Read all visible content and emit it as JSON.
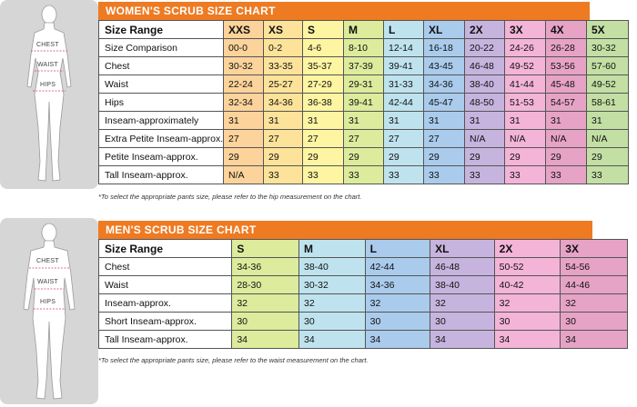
{
  "women": {
    "title": "WOMEN'S SCRUB SIZE CHART",
    "figure_labels": [
      "CHEST",
      "WAIST",
      "HIPS"
    ],
    "columns": [
      "XXS",
      "XS",
      "S",
      "M",
      "L",
      "XL",
      "2X",
      "3X",
      "4X",
      "5X"
    ],
    "column_colors": [
      "#fcd39a",
      "#fde39a",
      "#fef5a2",
      "#dceb9c",
      "#bfe3ee",
      "#aacbec",
      "#c6b4de",
      "#f3b4d8",
      "#e6a3c6",
      "#c3dfa4"
    ],
    "rows": [
      {
        "label": "Size Range",
        "cells": [
          "XXS",
          "XS",
          "S",
          "M",
          "L",
          "XL",
          "2X",
          "3X",
          "4X",
          "5X"
        ]
      },
      {
        "label": "Size Comparison",
        "cells": [
          "00-0",
          "0-2",
          "4-6",
          "8-10",
          "12-14",
          "16-18",
          "20-22",
          "24-26",
          "26-28",
          "30-32"
        ]
      },
      {
        "label": "Chest",
        "cells": [
          "30-32",
          "33-35",
          "35-37",
          "37-39",
          "39-41",
          "43-45",
          "46-48",
          "49-52",
          "53-56",
          "57-60"
        ]
      },
      {
        "label": "Waist",
        "cells": [
          "22-24",
          "25-27",
          "27-29",
          "29-31",
          "31-33",
          "34-36",
          "38-40",
          "41-44",
          "45-48",
          "49-52"
        ]
      },
      {
        "label": "Hips",
        "cells": [
          "32-34",
          "34-36",
          "36-38",
          "39-41",
          "42-44",
          "45-47",
          "48-50",
          "51-53",
          "54-57",
          "58-61"
        ]
      },
      {
        "label": "Inseam-approximately",
        "cells": [
          "31",
          "31",
          "31",
          "31",
          "31",
          "31",
          "31",
          "31",
          "31",
          "31"
        ]
      },
      {
        "label": "Extra Petite Inseam-approx.",
        "cells": [
          "27",
          "27",
          "27",
          "27",
          "27",
          "27",
          "N/A",
          "N/A",
          "N/A",
          "N/A"
        ]
      },
      {
        "label": "Petite Inseam-approx.",
        "cells": [
          "29",
          "29",
          "29",
          "29",
          "29",
          "29",
          "29",
          "29",
          "29",
          "29"
        ]
      },
      {
        "label": "Tall Inseam-approx.",
        "cells": [
          "N/A",
          "33",
          "33",
          "33",
          "33",
          "33",
          "33",
          "33",
          "33",
          "33"
        ]
      }
    ],
    "note": "*To select the appropriate pants size, please refer to the hip measurement on the chart."
  },
  "men": {
    "title": "MEN'S SCRUB SIZE CHART",
    "figure_labels": [
      "CHEST",
      "WAIST",
      "HIPS"
    ],
    "columns": [
      "S",
      "M",
      "L",
      "XL",
      "2X",
      "3X"
    ],
    "column_colors": [
      "#dceb9c",
      "#bfe3ee",
      "#aacbec",
      "#c6b4de",
      "#f3b4d8",
      "#e6a3c6"
    ],
    "rows": [
      {
        "label": "Size Range",
        "cells": [
          "S",
          "M",
          "L",
          "XL",
          "2X",
          "3X"
        ]
      },
      {
        "label": "Chest",
        "cells": [
          "34-36",
          "38-40",
          "42-44",
          "46-48",
          "50-52",
          "54-56"
        ]
      },
      {
        "label": "Waist",
        "cells": [
          "28-30",
          "30-32",
          "34-36",
          "38-40",
          "40-42",
          "44-46"
        ]
      },
      {
        "label": "Inseam-approx.",
        "cells": [
          "32",
          "32",
          "32",
          "32",
          "32",
          "32"
        ]
      },
      {
        "label": "Short Inseam-approx.",
        "cells": [
          "30",
          "30",
          "30",
          "30",
          "30",
          "30"
        ]
      },
      {
        "label": "Tall Inseam-approx.",
        "cells": [
          "34",
          "34",
          "34",
          "34",
          "34",
          "34"
        ]
      }
    ],
    "note": "*To select the appropriate pants size, please refer to the waist measurement on the chart."
  }
}
